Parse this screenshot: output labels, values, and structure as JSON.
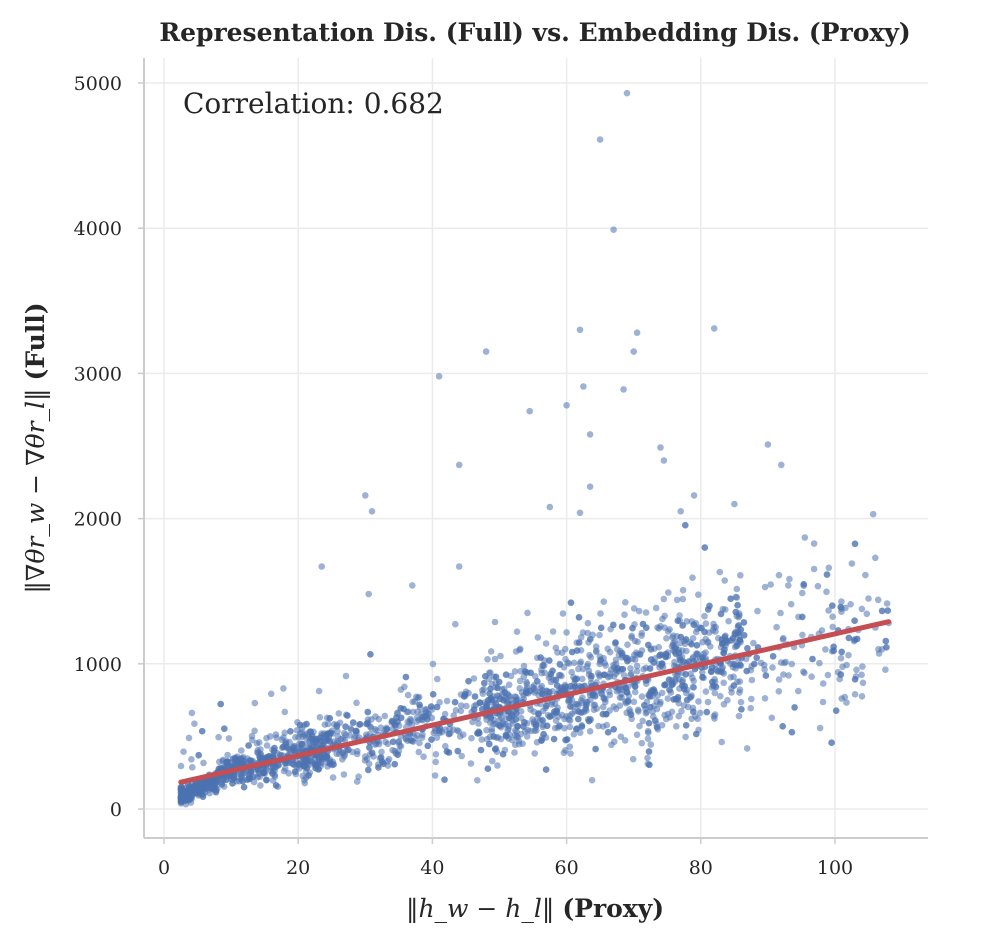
{
  "chart_data": {
    "type": "scatter",
    "title": "Representation Dis. (Full) vs. Embedding Dis. (Proxy)",
    "xlabel_math": "‖h_w − h_l‖",
    "xlabel_suffix": "(Proxy)",
    "ylabel_math": "‖∇θr_w − ∇θr_l‖",
    "ylabel_suffix": "(Full)",
    "annotation": "Correlation: 0.682",
    "correlation": 0.682,
    "xlim": [
      -2,
      113
    ],
    "ylim": [
      -200,
      5180
    ],
    "x_ticks": [
      0,
      20,
      40,
      60,
      80,
      100
    ],
    "y_ticks": [
      0,
      1000,
      2000,
      3000,
      4000,
      5000
    ],
    "x_tick_labels": [
      "0",
      "20",
      "40",
      "60",
      "80",
      "100"
    ],
    "y_tick_labels": [
      "0",
      "1000",
      "2000",
      "3000",
      "4000",
      "5000"
    ],
    "grid": true,
    "colors": {
      "points": "#4c72b0",
      "fit_line": "#c44e52"
    },
    "fit_line": {
      "x": [
        2.5,
        108
      ],
      "y": [
        185,
        1290
      ]
    },
    "outliers": [
      {
        "x": 69,
        "y": 4930
      },
      {
        "x": 65,
        "y": 4610
      },
      {
        "x": 67,
        "y": 3990
      },
      {
        "x": 62,
        "y": 3300
      },
      {
        "x": 70.5,
        "y": 3280
      },
      {
        "x": 82,
        "y": 3310
      },
      {
        "x": 48,
        "y": 3150
      },
      {
        "x": 70,
        "y": 3150
      },
      {
        "x": 41,
        "y": 2980
      },
      {
        "x": 62.5,
        "y": 2910
      },
      {
        "x": 68.5,
        "y": 2890
      },
      {
        "x": 60,
        "y": 2780
      },
      {
        "x": 54.5,
        "y": 2740
      },
      {
        "x": 63.5,
        "y": 2580
      },
      {
        "x": 90,
        "y": 2510
      },
      {
        "x": 74,
        "y": 2490
      },
      {
        "x": 74.5,
        "y": 2400
      },
      {
        "x": 44,
        "y": 2370
      },
      {
        "x": 92,
        "y": 2370
      },
      {
        "x": 63.5,
        "y": 2220
      },
      {
        "x": 30,
        "y": 2160
      },
      {
        "x": 79,
        "y": 2160
      },
      {
        "x": 85,
        "y": 2100
      },
      {
        "x": 31,
        "y": 2050
      },
      {
        "x": 57.5,
        "y": 2080
      },
      {
        "x": 62,
        "y": 2040
      },
      {
        "x": 77,
        "y": 2050
      },
      {
        "x": 23.5,
        "y": 1670
      },
      {
        "x": 30.5,
        "y": 1480
      },
      {
        "x": 37,
        "y": 1540
      },
      {
        "x": 44,
        "y": 1670
      },
      {
        "x": 106,
        "y": 1730
      },
      {
        "x": 95.5,
        "y": 1870
      },
      {
        "x": 105,
        "y": 1450
      },
      {
        "x": 103,
        "y": 790
      },
      {
        "x": 101,
        "y": 760
      },
      {
        "x": 108,
        "y": 1280
      },
      {
        "x": 107,
        "y": 1100
      }
    ],
    "bulk_series": {
      "n_points": 2600,
      "x_range": [
        2.5,
        108
      ],
      "trend": "y ≈ 10.5·x + 160 with heteroscedastic spread; densest cluster around x 55–85, y 500–1100"
    }
  }
}
